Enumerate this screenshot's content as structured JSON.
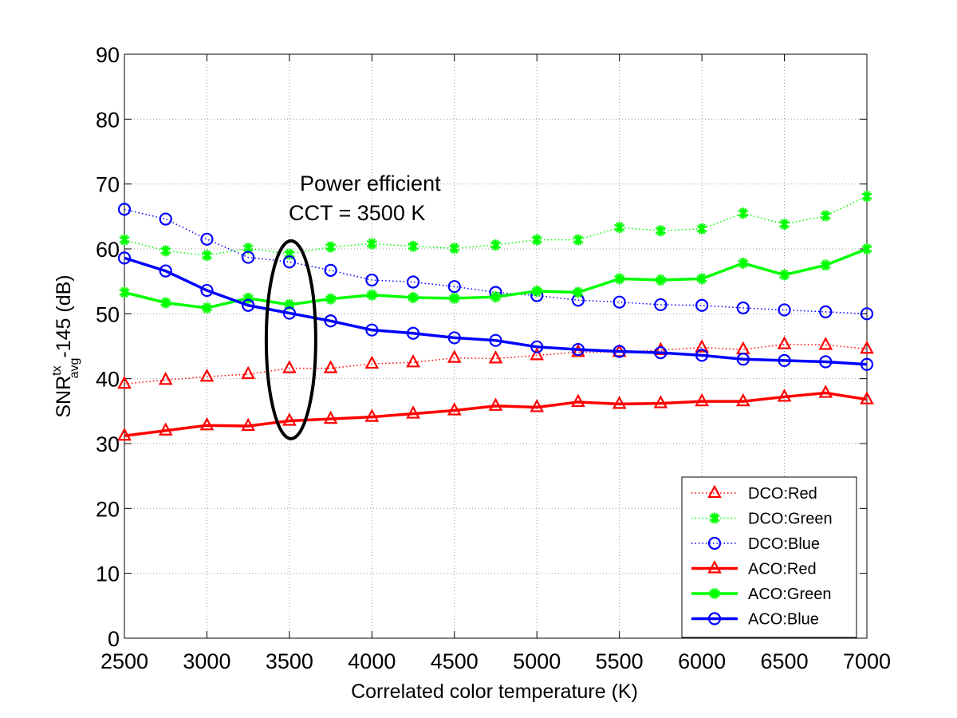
{
  "chart_data": {
    "type": "line",
    "title": "",
    "xlabel": "Correlated color temperature (K)",
    "ylabel": {
      "base": "SNR",
      "sup": "tx",
      "sub": "avg",
      "tail": "-145 (dB)"
    },
    "xlim": [
      2500,
      7000
    ],
    "ylim": [
      0,
      90
    ],
    "xticks": [
      2500,
      3000,
      3500,
      4000,
      4500,
      5000,
      5500,
      6000,
      6500,
      7000
    ],
    "yticks": [
      0,
      10,
      20,
      30,
      40,
      50,
      60,
      70,
      80,
      90
    ],
    "grid": true,
    "legend_position": "bottom-right",
    "x": [
      2500,
      2750,
      3000,
      3250,
      3500,
      3750,
      4000,
      4250,
      4500,
      4750,
      5000,
      5250,
      5500,
      5750,
      6000,
      6250,
      6500,
      6750,
      7000
    ],
    "series": [
      {
        "name": "DCO:Red",
        "color": "#ff0000",
        "style": "dotted",
        "marker": "triangle",
        "values": [
          39.2,
          39.8,
          40.3,
          40.7,
          41.6,
          41.6,
          42.3,
          42.5,
          43.2,
          43.1,
          43.6,
          44.1,
          44.1,
          44.4,
          44.8,
          44.5,
          45.3,
          45.2,
          44.6
        ]
      },
      {
        "name": "DCO:Green",
        "color": "#00ff00",
        "style": "dotted",
        "marker": "asterisk",
        "values": [
          61.4,
          59.7,
          59.0,
          60.1,
          59.2,
          60.3,
          60.8,
          60.4,
          60.1,
          60.6,
          61.4,
          61.4,
          63.3,
          62.8,
          63.1,
          65.5,
          63.8,
          65.1,
          68.1
        ]
      },
      {
        "name": "DCO:Blue",
        "color": "#0000ff",
        "style": "dotted",
        "marker": "circle",
        "values": [
          66.1,
          64.6,
          61.5,
          58.7,
          58.0,
          56.7,
          55.2,
          54.9,
          54.2,
          53.3,
          52.8,
          52.1,
          51.8,
          51.4,
          51.3,
          50.9,
          50.6,
          50.3,
          50.0
        ]
      },
      {
        "name": "ACO:Red",
        "color": "#ff0000",
        "style": "solid",
        "marker": "triangle",
        "values": [
          31.2,
          32.0,
          32.8,
          32.7,
          33.5,
          33.8,
          34.1,
          34.6,
          35.1,
          35.8,
          35.6,
          36.4,
          36.1,
          36.2,
          36.5,
          36.5,
          37.2,
          37.8,
          36.8
        ]
      },
      {
        "name": "ACO:Green",
        "color": "#00ff00",
        "style": "solid",
        "marker": "asterisk",
        "values": [
          53.3,
          51.7,
          50.9,
          52.4,
          51.4,
          52.3,
          52.9,
          52.5,
          52.4,
          52.6,
          53.5,
          53.3,
          55.4,
          55.2,
          55.4,
          57.8,
          56.0,
          57.5,
          60.0
        ]
      },
      {
        "name": "ACO:Blue",
        "color": "#0000ff",
        "style": "solid",
        "marker": "circle",
        "values": [
          58.6,
          56.6,
          53.6,
          51.3,
          50.1,
          48.9,
          47.5,
          47.0,
          46.3,
          45.9,
          44.9,
          44.5,
          44.2,
          44.0,
          43.6,
          43.0,
          42.8,
          42.6,
          42.2
        ]
      }
    ],
    "annotations": [
      {
        "text_lines": [
          "Power efficient",
          "CCT = 3500 K"
        ],
        "target": {
          "x": 3500,
          "y_range": [
            31,
            61
          ]
        },
        "shape": "ellipse"
      }
    ]
  }
}
